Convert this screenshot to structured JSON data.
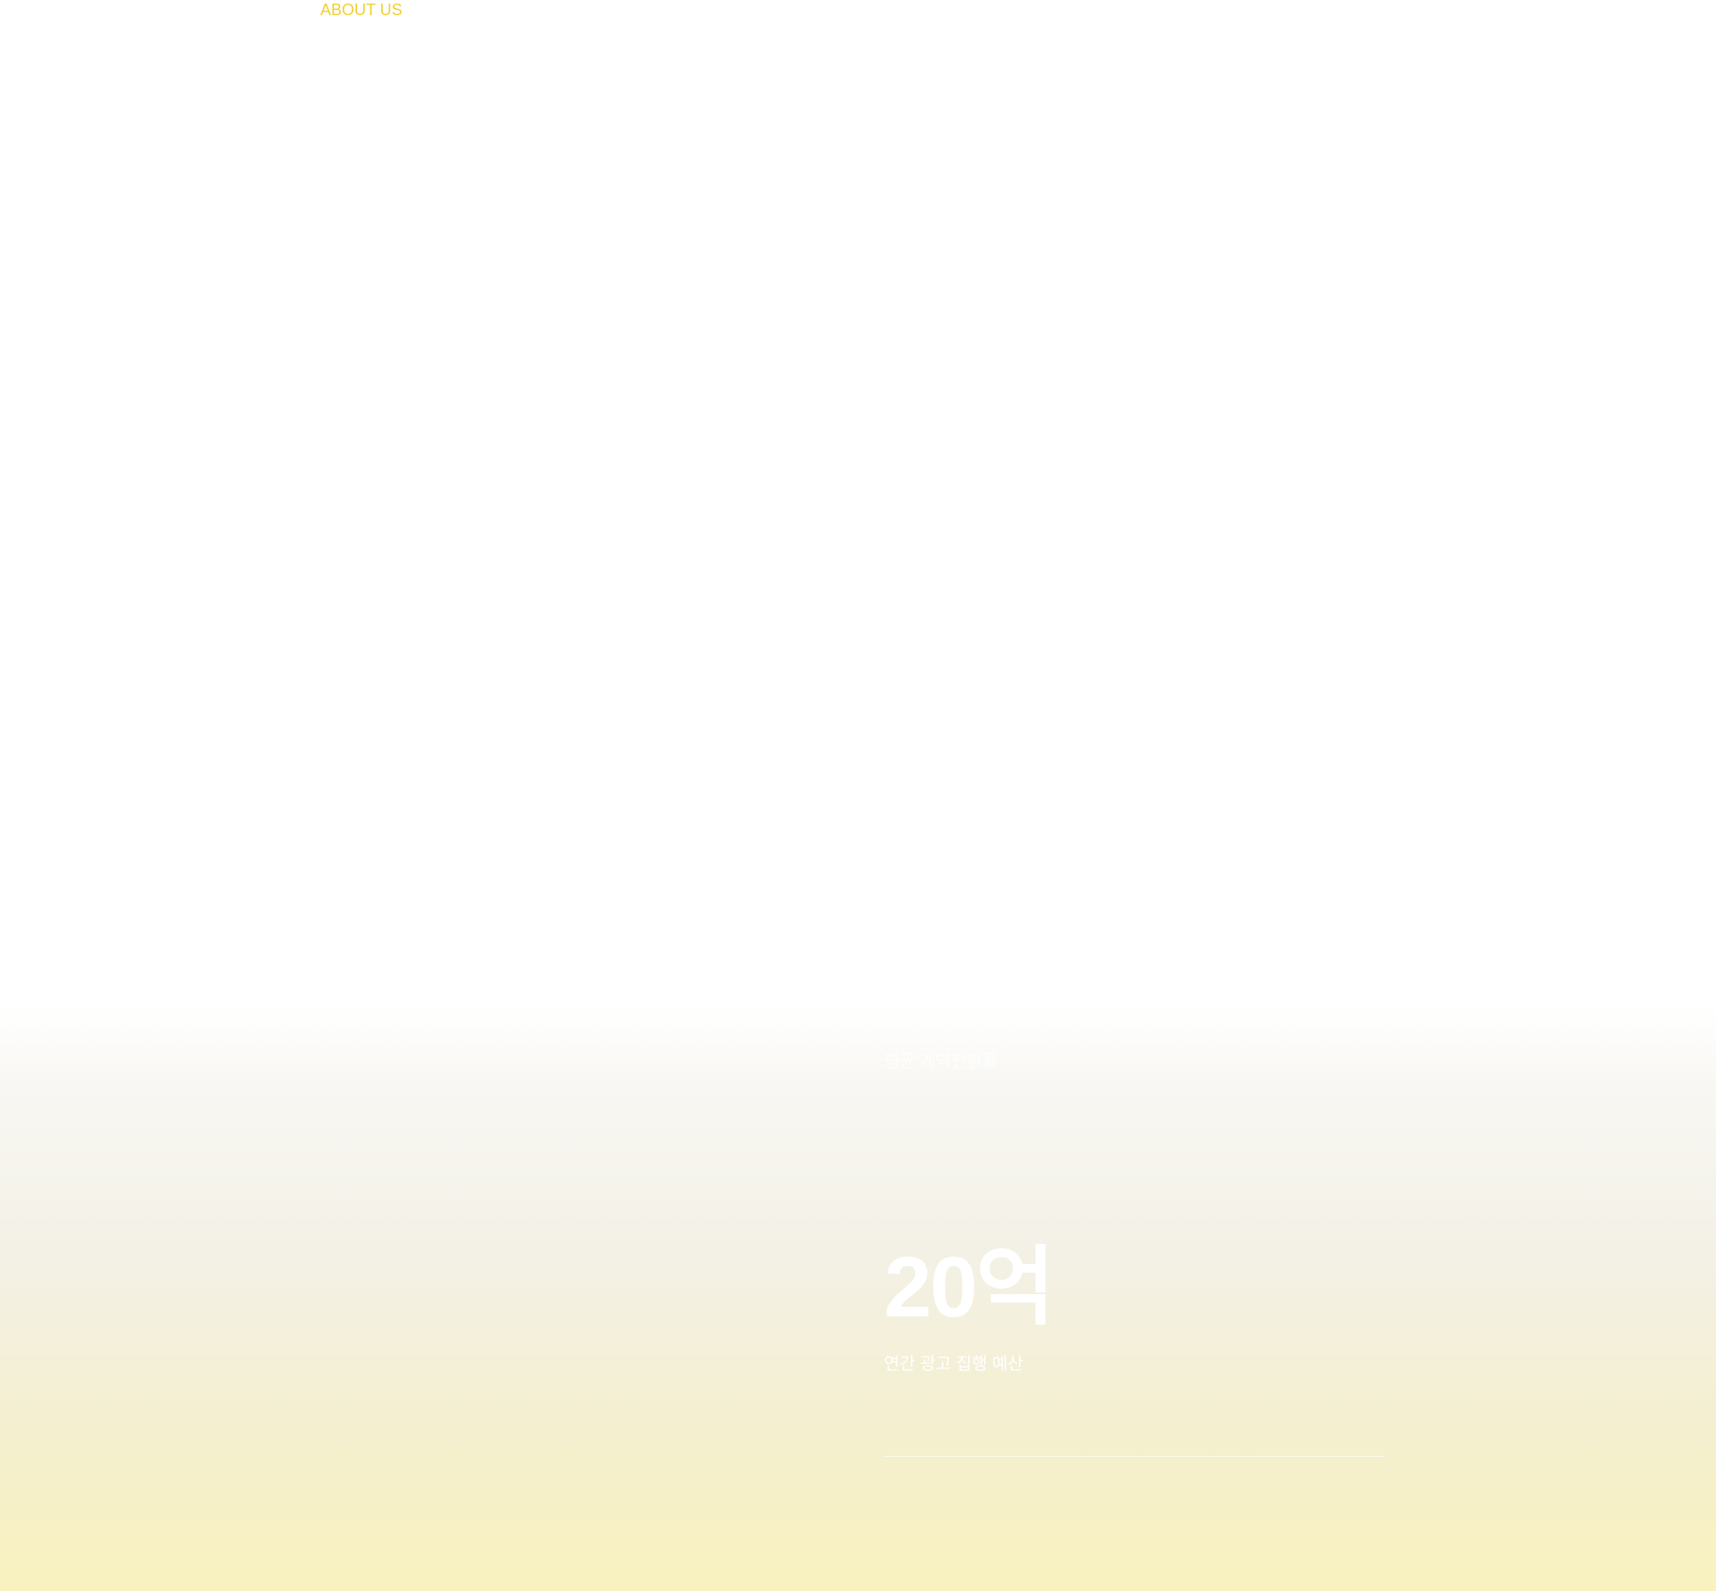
{
  "section": {
    "label": "ABOUT US"
  },
  "stats": [
    {
      "caption": "평균 계약전환율"
    },
    {
      "value": "20억",
      "caption": "연간 광고 집행 예산"
    }
  ],
  "colors": {
    "accent": "#f2d030",
    "gradient_end": "#f9f2bf"
  }
}
